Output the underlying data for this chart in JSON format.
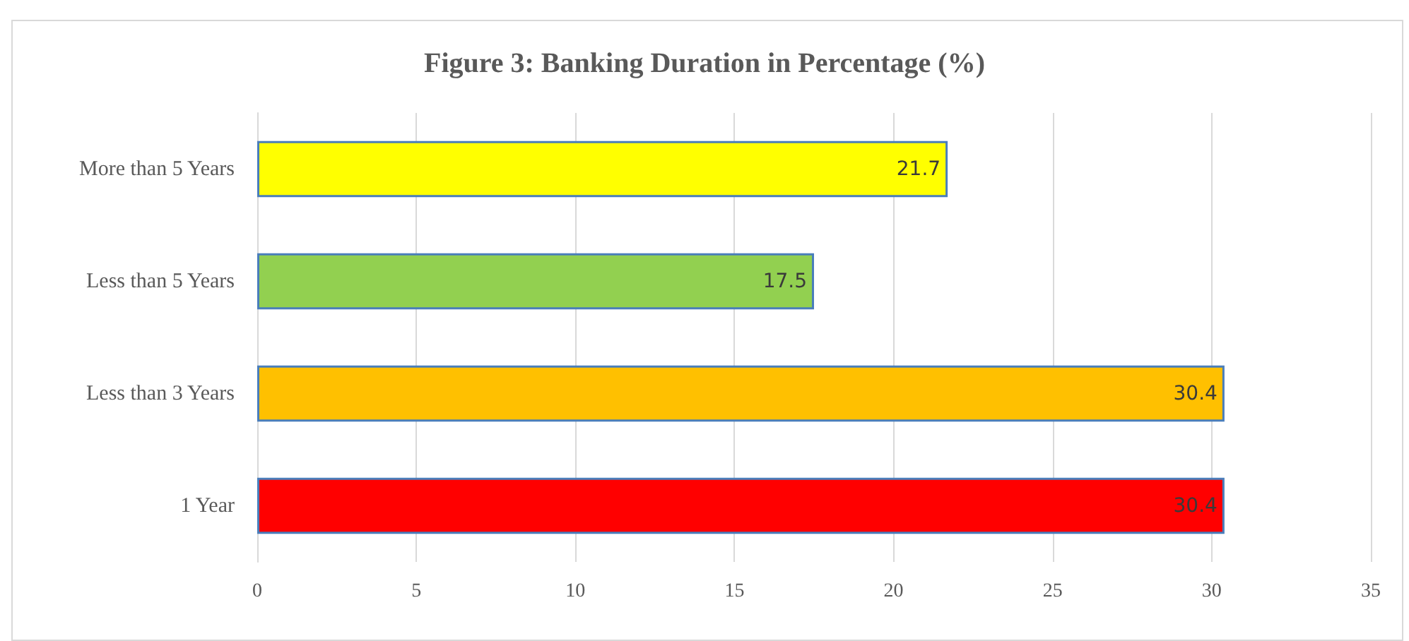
{
  "chart_data": {
    "type": "bar",
    "orientation": "horizontal",
    "title": "Figure 3: Banking Duration in Percentage (%)",
    "categories": [
      "More than 5 Years",
      "Less than 5 Years",
      "Less than 3 Years",
      "1 Year"
    ],
    "values": [
      21.7,
      17.5,
      30.4,
      30.4
    ],
    "colors": [
      "#ffff00",
      "#92d050",
      "#ffc000",
      "#ff0000"
    ],
    "xlim": [
      0,
      35
    ],
    "xticks": [
      0,
      5,
      10,
      15,
      20,
      25,
      30,
      35
    ],
    "grid": "x",
    "data_labels": true
  }
}
